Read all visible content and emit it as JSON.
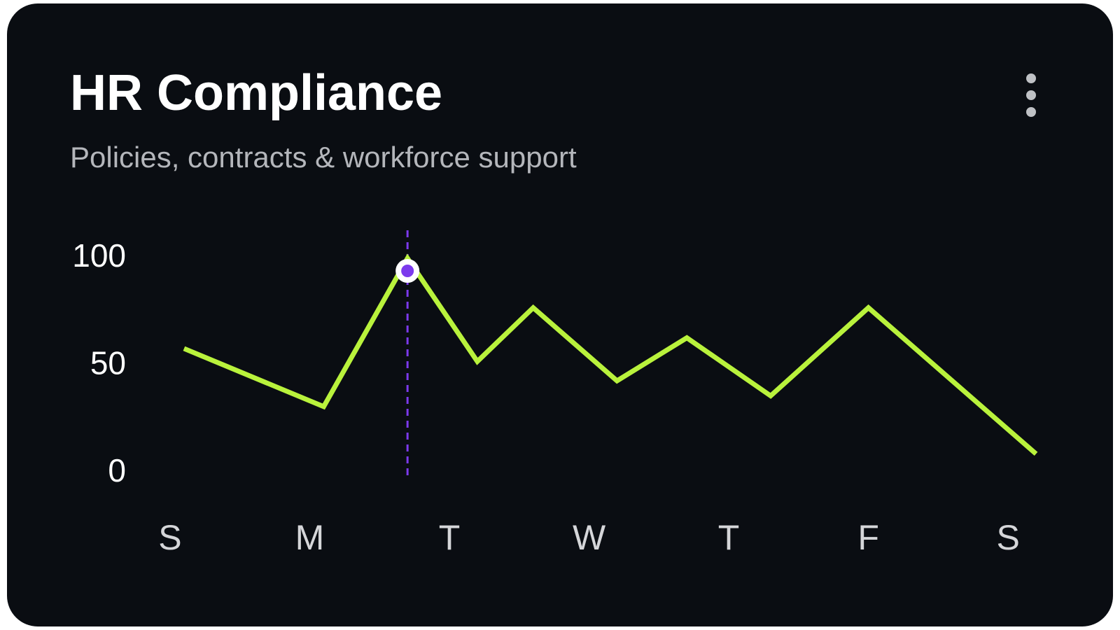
{
  "chart_data": {
    "type": "line",
    "title": "HR Compliance",
    "subtitle": "Policies, contracts & workforce support",
    "x": [
      0.1,
      1.1,
      1.7,
      2.2,
      2.6,
      3.2,
      3.7,
      4.3,
      5.0,
      6.2
    ],
    "values": [
      58,
      31,
      100,
      52,
      77,
      43,
      63,
      36,
      77,
      9
    ],
    "color": "#b9f23c",
    "highlight_index": 2,
    "highlight_color": "#7c3aed",
    "xlim": [
      -0.1,
      6.3
    ],
    "xticks": [
      {
        "value": 0,
        "label": "S"
      },
      {
        "value": 1,
        "label": "M"
      },
      {
        "value": 2,
        "label": "T"
      },
      {
        "value": 3,
        "label": "W"
      },
      {
        "value": 4,
        "label": "T"
      },
      {
        "value": 5,
        "label": "F"
      },
      {
        "value": 6,
        "label": "S"
      }
    ],
    "ylim": [
      0,
      100
    ],
    "yticks": [
      0,
      50,
      100
    ],
    "grid": false
  }
}
